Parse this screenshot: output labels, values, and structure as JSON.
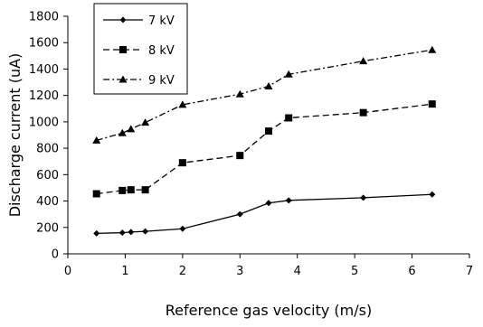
{
  "chart_data": {
    "type": "line",
    "title": "",
    "xlabel": "Reference gas velocity (m/s)",
    "ylabel": "Discharge current (uA)",
    "xlim": [
      0,
      7
    ],
    "ylim": [
      0,
      1800
    ],
    "xticks": [
      "0",
      "1",
      "2",
      "3",
      "4",
      "5",
      "6",
      "7"
    ],
    "yticks": [
      "0",
      "200",
      "400",
      "600",
      "800",
      "1000",
      "1200",
      "1400",
      "1600",
      "1800"
    ],
    "grid": false,
    "legend_position": "top-left",
    "series": [
      {
        "name": "7 kV",
        "marker": "diamond",
        "dash": "solid",
        "x": [
          0.5,
          0.95,
          1.1,
          1.35,
          2.0,
          3.0,
          3.5,
          3.85,
          5.15,
          6.35
        ],
        "y": [
          155,
          160,
          165,
          170,
          190,
          300,
          385,
          405,
          425,
          450
        ]
      },
      {
        "name": "8 kV",
        "marker": "square",
        "dash": "dash",
        "x": [
          0.5,
          0.95,
          1.1,
          1.35,
          2.0,
          3.0,
          3.5,
          3.85,
          5.15,
          6.35
        ],
        "y": [
          455,
          480,
          485,
          485,
          690,
          745,
          930,
          1030,
          1070,
          1135
        ]
      },
      {
        "name": "9 kV",
        "marker": "triangle",
        "dash": "dashdot",
        "x": [
          0.5,
          0.95,
          1.1,
          1.35,
          2.0,
          3.0,
          3.5,
          3.85,
          5.15,
          6.35
        ],
        "y": [
          860,
          915,
          945,
          995,
          1130,
          1210,
          1270,
          1360,
          1460,
          1545
        ]
      }
    ]
  }
}
